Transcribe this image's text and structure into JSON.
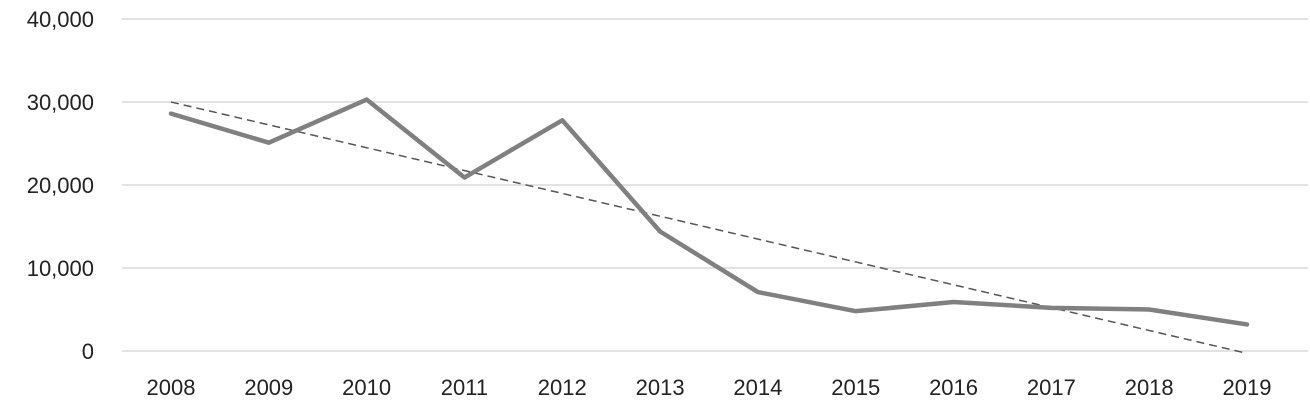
{
  "chart_data": {
    "type": "line",
    "title": "",
    "xlabel": "",
    "ylabel": "",
    "categories": [
      "2008",
      "2009",
      "2010",
      "2011",
      "2012",
      "2013",
      "2014",
      "2015",
      "2016",
      "2017",
      "2018",
      "2019"
    ],
    "series": [
      {
        "values": [
          28600,
          25100,
          30300,
          20900,
          27800,
          14400,
          7100,
          4800,
          5900,
          5200,
          5000,
          3200
        ],
        "color": "#808080",
        "style": "solid"
      }
    ],
    "trendline": {
      "type": "linear",
      "color": "#555555",
      "style": "dashed"
    },
    "ylim": [
      0,
      40000
    ],
    "yticks": [
      0,
      10000,
      20000,
      30000,
      40000
    ],
    "ytick_labels": [
      "0",
      "10,000",
      "20,000",
      "30,000",
      "40,000"
    ],
    "grid": "horizontal",
    "legend": "none"
  }
}
